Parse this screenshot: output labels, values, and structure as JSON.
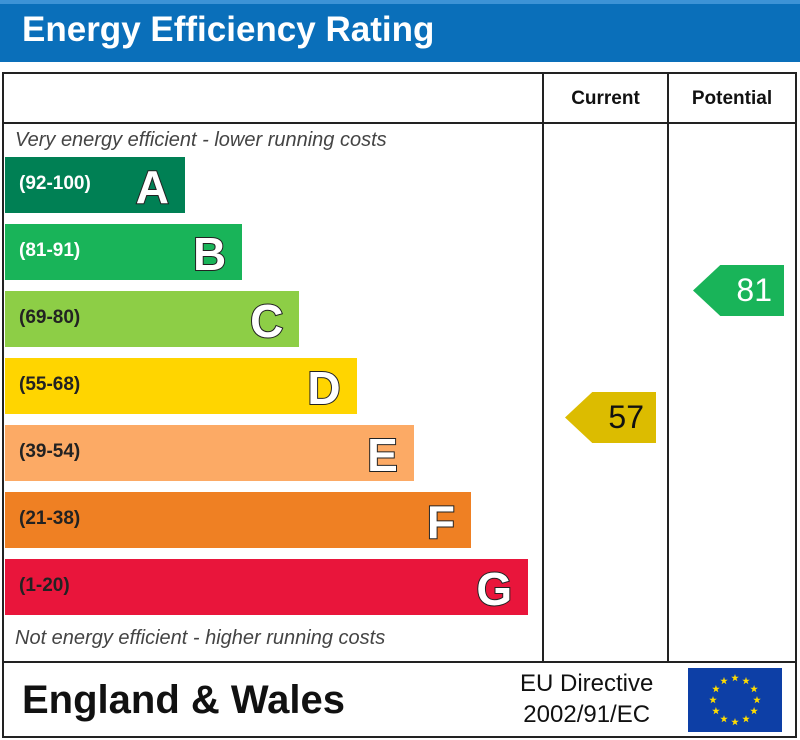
{
  "header": {
    "title": "Energy Efficiency Rating"
  },
  "columns": {
    "current": "Current",
    "potential": "Potential"
  },
  "notes": {
    "top": "Very energy efficient - lower running costs",
    "bottom": "Not energy efficient - higher running costs"
  },
  "footer": {
    "region": "England & Wales",
    "directive_line1": "EU Directive",
    "directive_line2": "2002/91/EC",
    "flag_icon": "eu-flag-icon"
  },
  "chart_data": {
    "type": "bar",
    "title": "Energy Efficiency Rating",
    "bands": [
      {
        "letter": "A",
        "range": "(92-100)",
        "min": 92,
        "max": 100,
        "color": "#008054",
        "label_color": "#ffffff"
      },
      {
        "letter": "B",
        "range": "(81-91)",
        "min": 81,
        "max": 91,
        "color": "#19b459",
        "label_color": "#ffffff"
      },
      {
        "letter": "C",
        "range": "(69-80)",
        "min": 69,
        "max": 80,
        "color": "#8dce46",
        "label_color": "#222222"
      },
      {
        "letter": "D",
        "range": "(55-68)",
        "min": 55,
        "max": 68,
        "color": "#ffd500",
        "label_color": "#222222"
      },
      {
        "letter": "E",
        "range": "(39-54)",
        "min": 39,
        "max": 54,
        "color": "#fcaa65",
        "label_color": "#222222"
      },
      {
        "letter": "F",
        "range": "(21-38)",
        "min": 21,
        "max": 38,
        "color": "#ef8023",
        "label_color": "#222222"
      },
      {
        "letter": "G",
        "range": "(1-20)",
        "min": 1,
        "max": 20,
        "color": "#e9153b",
        "label_color": "#222222"
      }
    ],
    "current": {
      "value": "57",
      "band": "D",
      "color": "#dcbc00",
      "text_color": "#111111"
    },
    "potential": {
      "value": "81",
      "band": "B",
      "color": "#19b459",
      "text_color": "#ffffff"
    }
  }
}
